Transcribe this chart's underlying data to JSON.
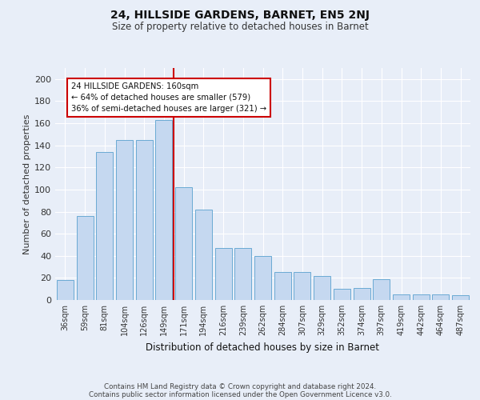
{
  "title1": "24, HILLSIDE GARDENS, BARNET, EN5 2NJ",
  "title2": "Size of property relative to detached houses in Barnet",
  "xlabel": "Distribution of detached houses by size in Barnet",
  "ylabel": "Number of detached properties",
  "categories": [
    "36sqm",
    "59sqm",
    "81sqm",
    "104sqm",
    "126sqm",
    "149sqm",
    "171sqm",
    "194sqm",
    "216sqm",
    "239sqm",
    "262sqm",
    "284sqm",
    "307sqm",
    "329sqm",
    "352sqm",
    "374sqm",
    "397sqm",
    "419sqm",
    "442sqm",
    "464sqm",
    "487sqm"
  ],
  "values": [
    18,
    76,
    134,
    145,
    145,
    163,
    102,
    82,
    47,
    47,
    40,
    25,
    25,
    22,
    10,
    11,
    19,
    5,
    5,
    5,
    4
  ],
  "bar_color": "#c5d8f0",
  "bar_edge_color": "#6aaad4",
  "background_color": "#e8eef8",
  "fig_background_color": "#e8eef8",
  "grid_color": "#ffffff",
  "annotation_text_line1": "24 HILLSIDE GARDENS: 160sqm",
  "annotation_text_line2": "← 64% of detached houses are smaller (579)",
  "annotation_text_line3": "36% of semi-detached houses are larger (321) →",
  "annotation_box_color": "#ffffff",
  "annotation_box_edge_color": "#cc0000",
  "red_line_color": "#cc0000",
  "footer_line1": "Contains HM Land Registry data © Crown copyright and database right 2024.",
  "footer_line2": "Contains public sector information licensed under the Open Government Licence v3.0.",
  "ylim": [
    0,
    210
  ],
  "yticks": [
    0,
    20,
    40,
    60,
    80,
    100,
    120,
    140,
    160,
    180,
    200
  ]
}
